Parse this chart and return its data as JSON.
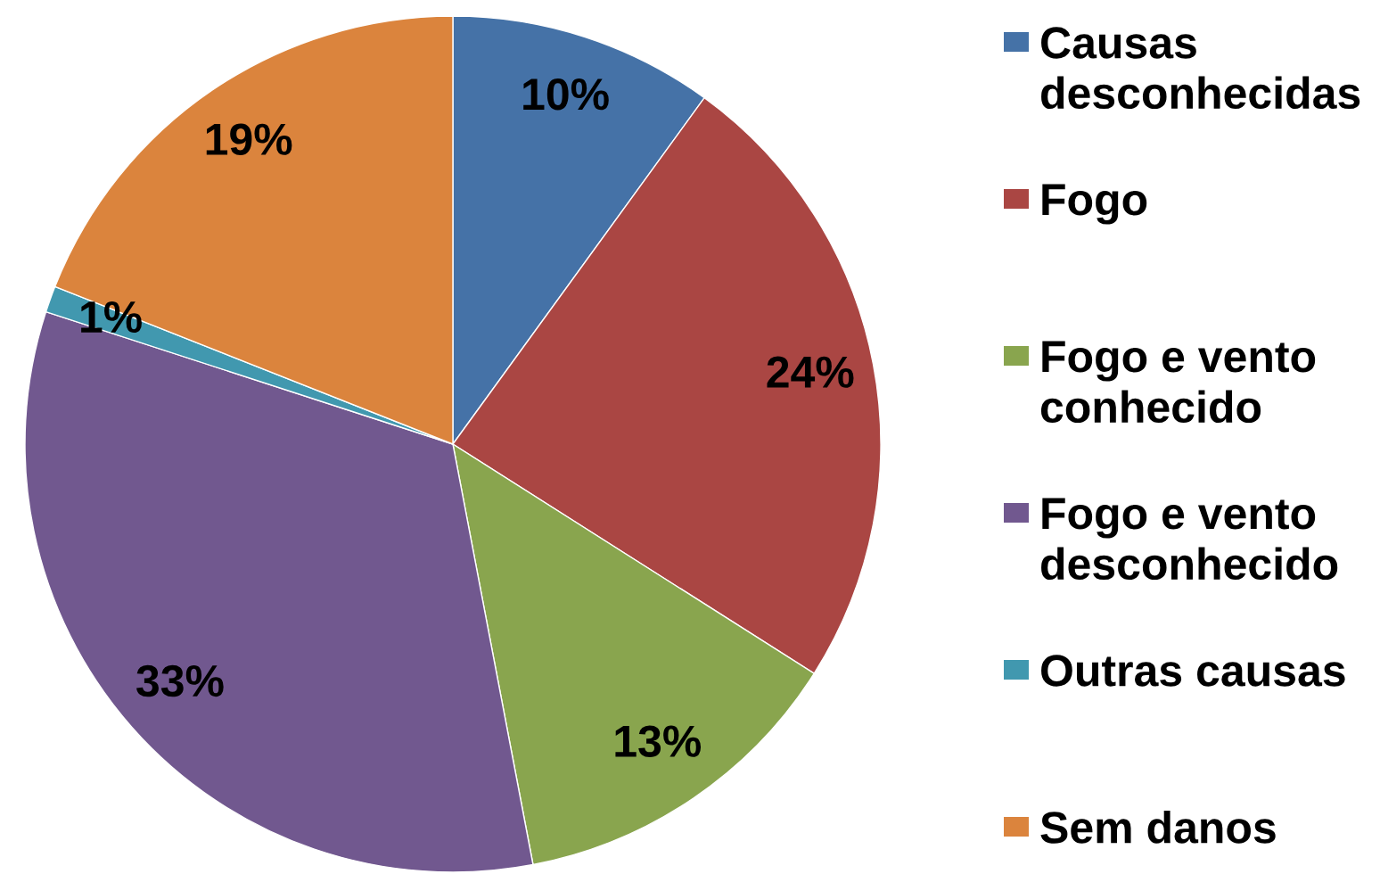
{
  "chart_data": {
    "type": "pie",
    "categories": [
      "Causas desconhecidas",
      "Fogo",
      "Fogo e vento conhecido",
      "Fogo e vento desconhecido",
      "Outras causas",
      "Sem danos"
    ],
    "values": [
      10,
      24,
      13,
      33,
      1,
      19
    ],
    "colors": [
      "#4572a7",
      "#aa4643",
      "#89a54e",
      "#71588f",
      "#4198af",
      "#db843d"
    ],
    "value_labels": [
      "10%",
      "24%",
      "13%",
      "33%",
      "1%",
      "19%"
    ],
    "legend": "right"
  }
}
